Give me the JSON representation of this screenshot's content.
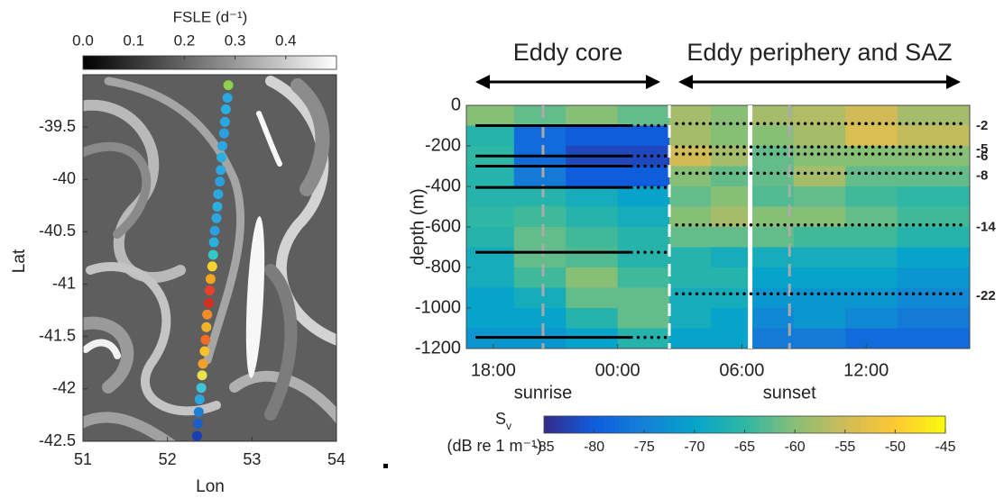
{
  "chart_data": [
    {
      "type": "map",
      "xlabel": "Lon",
      "ylabel": "Lat",
      "xlim": [
        51,
        54
      ],
      "xticks": [
        51,
        52,
        53,
        54
      ],
      "ylim": [
        -42.5,
        -39.0
      ],
      "yticks": [
        -39.5,
        -40,
        -40.5,
        -41,
        -41.5,
        -42,
        -42.5
      ],
      "colorbar": {
        "label": "FSLE (d⁻¹)",
        "lim": [
          0,
          0.5
        ],
        "ticks": [
          {
            "value": 0,
            "label": "0.0"
          },
          0.1,
          0.2,
          0.3,
          0.4
        ]
      },
      "track": {
        "x": [
          52.72,
          52.71,
          52.69,
          52.68,
          52.67,
          52.65,
          52.64,
          52.63,
          52.62,
          52.6,
          52.59,
          52.58,
          52.56,
          52.55,
          52.54,
          52.53,
          52.51,
          52.5,
          52.49,
          52.47,
          52.46,
          52.45,
          52.44,
          52.42,
          52.41,
          52.4,
          52.38,
          52.37,
          52.36,
          52.35
        ],
        "y": [
          -39.1,
          -39.22,
          -39.33,
          -39.45,
          -39.56,
          -39.68,
          -39.79,
          -39.91,
          -40.02,
          -40.14,
          -40.26,
          -40.37,
          -40.49,
          -40.6,
          -40.72,
          -40.83,
          -40.95,
          -41.06,
          -41.18,
          -41.29,
          -41.41,
          -41.53,
          -41.64,
          -41.76,
          -41.87,
          -41.99,
          -42.1,
          -42.22,
          -42.33,
          -42.45
        ],
        "colors": [
          "#8fd14f",
          "#2aa7e1",
          "#2ab0e0",
          "#2aa7e1",
          "#2aa0e1",
          "#2aa7e1",
          "#2ab0e0",
          "#2aa7e1",
          "#2aa0e1",
          "#2aa7e1",
          "#2ab0e0",
          "#2aa7e1",
          "#2aa0e1",
          "#2ab0e0",
          "#36c8c8",
          "#f6d32d",
          "#f4a51c",
          "#e8412a",
          "#d62f1f",
          "#f28c28",
          "#f0b429",
          "#f06b23",
          "#f5c22c",
          "#f3a02a",
          "#e9e24a",
          "#3ec4d6",
          "#2aa7e1",
          "#1e7fd8",
          "#1b5ec9",
          "#1a3fb5"
        ]
      }
    },
    {
      "type": "heatmap",
      "ylabel": "depth (m)",
      "xlim": [
        16.7,
        41.0
      ],
      "xticks": [
        {
          "value": 18,
          "label": "18:00"
        },
        {
          "value": 24,
          "label": "00:00"
        },
        {
          "value": 30,
          "label": "06:00"
        },
        {
          "value": 36,
          "label": "12:00"
        }
      ],
      "ylim": [
        -1200,
        0
      ],
      "yticks": [
        0,
        -200,
        -400,
        -600,
        -800,
        -1000,
        -1200
      ],
      "x_edges": [
        16.7,
        19,
        21.5,
        24,
        26.5,
        28.5,
        30.4,
        32.5,
        35,
        37.5,
        41.0
      ],
      "depth_edges": [
        0,
        -100,
        -200,
        -300,
        -400,
        -500,
        -600,
        -700,
        -800,
        -900,
        -1000,
        -1100,
        -1200
      ],
      "z": [
        [
          -60,
          -62,
          -60,
          -62,
          -58,
          -60,
          -58,
          -57,
          -55,
          -58
        ],
        [
          -66,
          -78,
          -80,
          -80,
          -58,
          -60,
          -60,
          -58,
          -54,
          -56
        ],
        [
          -65,
          -78,
          -82,
          -82,
          -55,
          -58,
          -62,
          -60,
          -60,
          -60
        ],
        [
          -66,
          -76,
          -80,
          -80,
          -60,
          -62,
          -62,
          -58,
          -62,
          -62
        ],
        [
          -66,
          -66,
          -68,
          -70,
          -62,
          -60,
          -63,
          -62,
          -64,
          -65
        ],
        [
          -65,
          -64,
          -66,
          -68,
          -60,
          -58,
          -60,
          -60,
          -62,
          -64
        ],
        [
          -66,
          -62,
          -64,
          -66,
          -62,
          -62,
          -62,
          -64,
          -64,
          -66
        ],
        [
          -68,
          -62,
          -63,
          -66,
          -66,
          -68,
          -68,
          -68,
          -68,
          -70
        ],
        [
          -68,
          -64,
          -60,
          -64,
          -66,
          -66,
          -70,
          -70,
          -70,
          -72
        ],
        [
          -70,
          -68,
          -62,
          -62,
          -68,
          -68,
          -72,
          -72,
          -72,
          -74
        ],
        [
          -70,
          -70,
          -66,
          -62,
          -68,
          -70,
          -74,
          -72,
          -74,
          -76
        ],
        [
          -72,
          -72,
          -70,
          -66,
          -70,
          -70,
          -76,
          -76,
          -78,
          -78
        ]
      ],
      "colorbar": {
        "label": "S",
        "label_subscript": "v",
        "units": "(dB re 1 m⁻¹)",
        "lim": [
          -85,
          -45
        ],
        "ticks": [
          -85,
          -80,
          -75,
          -70,
          -65,
          -60,
          -55,
          -50,
          -45
        ]
      },
      "regions": [
        {
          "text": "Eddy core",
          "x": [
            16.7,
            26.5
          ]
        },
        {
          "text": "Eddy periphery and SAZ",
          "x": [
            26.5,
            41.0
          ]
        }
      ],
      "annotations": [
        {
          "text": "sunrise",
          "x": 20.4
        },
        {
          "text": "sunset",
          "x": 32.3
        }
      ],
      "gap_x": 30.4,
      "core_layers": [
        -100,
        -250,
        -300,
        -405,
        -725,
        -1145
      ],
      "periphery_layers": [
        -90,
        -205,
        -240,
        -335,
        -590,
        -930
      ],
      "periphery_labels": [
        -2,
        -5,
        -6,
        -8,
        -14,
        -22
      ]
    }
  ]
}
